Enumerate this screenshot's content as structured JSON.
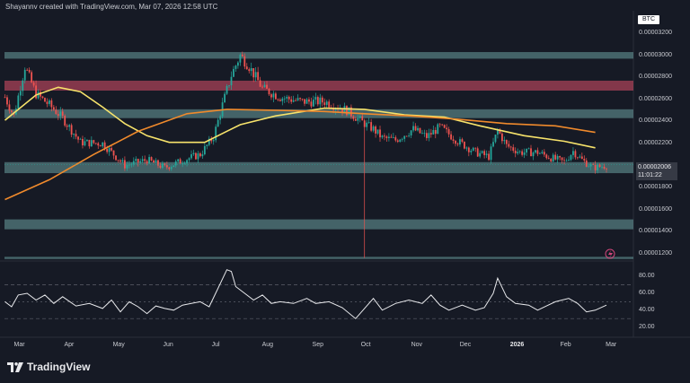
{
  "header": {
    "attribution": "Shayannv created with TradingView.com, Mar 07, 2026 12:58 UTC"
  },
  "footer": {
    "brand": "TradingView"
  },
  "colors": {
    "background": "#161a25",
    "zone": "#5d8a8c",
    "supply_zone": "#b2455a",
    "candle_up": "#26a69a",
    "candle_down": "#ef5350",
    "ma_fast": "#f7e36b",
    "ma_slow": "#f08a2c",
    "rsi_line": "#e8e9ec"
  },
  "chart_data": [
    {
      "type": "candlestick",
      "ticker": "BTC",
      "unit": "BTC",
      "ylim": [
        1.14e-05,
        3.34e-05
      ],
      "price_ticks": [
        "0.00003200",
        "0.00003000",
        "0.00002800",
        "0.00002600",
        "0.00002400",
        "0.00002200",
        "0.00001800",
        "0.00001600",
        "0.00001400",
        "0.00001200"
      ],
      "x_ticks": [
        {
          "label": "Mar",
          "bold": false
        },
        {
          "label": "Apr",
          "bold": false
        },
        {
          "label": "May",
          "bold": false
        },
        {
          "label": "Jun",
          "bold": false
        },
        {
          "label": "Jul",
          "bold": false
        },
        {
          "label": "Aug",
          "bold": false
        },
        {
          "label": "Sep",
          "bold": false
        },
        {
          "label": "Oct",
          "bold": false
        },
        {
          "label": "Nov",
          "bold": false
        },
        {
          "label": "Dec",
          "bold": false
        },
        {
          "label": "2026",
          "bold": true
        },
        {
          "label": "Feb",
          "bold": false
        },
        {
          "label": "Mar",
          "bold": false
        }
      ],
      "last_price": "0.00002006",
      "countdown": "11:01:22",
      "zones": [
        {
          "kind": "support",
          "low": 2.97e-05,
          "high": 3.03e-05
        },
        {
          "kind": "supply",
          "low": 2.68e-05,
          "high": 2.77e-05
        },
        {
          "kind": "support",
          "low": 2.43e-05,
          "high": 2.51e-05
        },
        {
          "kind": "support",
          "low": 1.93e-05,
          "high": 2.03e-05
        },
        {
          "kind": "support",
          "low": 1.42e-05,
          "high": 1.51e-05
        },
        {
          "kind": "support",
          "low": 1.15e-05,
          "high": 1.17e-05
        }
      ],
      "close_path": [
        [
          0,
          2.62e-05
        ],
        [
          4,
          2.45e-05
        ],
        [
          9,
          2.9e-05
        ],
        [
          14,
          2.65e-05
        ],
        [
          20,
          2.55e-05
        ],
        [
          26,
          2.43e-05
        ],
        [
          34,
          2.21e-05
        ],
        [
          44,
          2.2e-05
        ],
        [
          54,
          2e-05
        ],
        [
          64,
          2.05e-05
        ],
        [
          72,
          1.98e-05
        ],
        [
          82,
          2.06e-05
        ],
        [
          88,
          2.1e-05
        ],
        [
          94,
          2.26e-05
        ],
        [
          98,
          2.55e-05
        ],
        [
          102,
          2.82e-05
        ],
        [
          106,
          3e-05
        ],
        [
          110,
          2.9e-05
        ],
        [
          116,
          2.7e-05
        ],
        [
          124,
          2.62e-05
        ],
        [
          134,
          2.58e-05
        ],
        [
          144,
          2.58e-05
        ],
        [
          154,
          2.5e-05
        ],
        [
          162,
          2.38e-05
        ],
        [
          166,
          2.33e-05
        ],
        [
          170,
          2.25e-05
        ],
        [
          176,
          2.23e-05
        ],
        [
          184,
          2.33e-05
        ],
        [
          190,
          2.26e-05
        ],
        [
          196,
          2.35e-05
        ],
        [
          204,
          2.22e-05
        ],
        [
          212,
          2.12e-05
        ],
        [
          218,
          2.08e-05
        ],
        [
          222,
          2.32e-05
        ],
        [
          226,
          2.18e-05
        ],
        [
          232,
          2.12e-05
        ],
        [
          240,
          2.12e-05
        ],
        [
          246,
          2.07e-05
        ],
        [
          252,
          2.03e-05
        ],
        [
          256,
          2.13e-05
        ],
        [
          260,
          2.05e-05
        ],
        [
          265,
          1.98e-05
        ],
        [
          271,
          2e-05
        ]
      ],
      "wick_low": {
        "day": 162,
        "low": 1.16e-05
      },
      "series": [
        {
          "kind": "ma_fast",
          "points": [
            [
              0,
              2.41e-05
            ],
            [
              14,
              2.64e-05
            ],
            [
              24,
              2.71e-05
            ],
            [
              34,
              2.67e-05
            ],
            [
              44,
              2.53e-05
            ],
            [
              54,
              2.38e-05
            ],
            [
              64,
              2.27e-05
            ],
            [
              74,
              2.21e-05
            ],
            [
              90,
              2.21e-05
            ],
            [
              106,
              2.37e-05
            ],
            [
              122,
              2.45e-05
            ],
            [
              144,
              2.52e-05
            ],
            [
              162,
              2.51e-05
            ],
            [
              180,
              2.46e-05
            ],
            [
              198,
              2.44e-05
            ],
            [
              214,
              2.36e-05
            ],
            [
              234,
              2.27e-05
            ],
            [
              252,
              2.22e-05
            ],
            [
              266,
              2.16e-05
            ]
          ]
        },
        {
          "kind": "ma_slow",
          "points": [
            [
              0,
              1.69e-05
            ],
            [
              20,
              1.87e-05
            ],
            [
              40,
              2.1e-05
            ],
            [
              60,
              2.31e-05
            ],
            [
              82,
              2.47e-05
            ],
            [
              100,
              2.51e-05
            ],
            [
              124,
              2.5e-05
            ],
            [
              144,
              2.49e-05
            ],
            [
              162,
              2.47e-05
            ],
            [
              182,
              2.45e-05
            ],
            [
              204,
              2.42e-05
            ],
            [
              226,
              2.38e-05
            ],
            [
              248,
              2.36e-05
            ],
            [
              266,
              2.3e-05
            ]
          ]
        }
      ]
    },
    {
      "type": "line",
      "name": "RSI",
      "ylim": [
        10,
        93
      ],
      "y_ticks": [
        "80.00",
        "60.00",
        "40.00",
        "20.00"
      ],
      "guides": [
        70,
        50,
        30
      ],
      "values": [
        [
          0,
          50
        ],
        [
          3,
          44
        ],
        [
          6,
          58
        ],
        [
          10,
          60
        ],
        [
          14,
          52
        ],
        [
          18,
          58
        ],
        [
          22,
          48
        ],
        [
          26,
          56
        ],
        [
          32,
          45
        ],
        [
          38,
          48
        ],
        [
          44,
          42
        ],
        [
          48,
          52
        ],
        [
          52,
          38
        ],
        [
          56,
          50
        ],
        [
          60,
          44
        ],
        [
          64,
          36
        ],
        [
          68,
          45
        ],
        [
          72,
          42
        ],
        [
          76,
          40
        ],
        [
          80,
          46
        ],
        [
          84,
          48
        ],
        [
          88,
          50
        ],
        [
          92,
          44
        ],
        [
          96,
          66
        ],
        [
          100,
          88
        ],
        [
          102,
          86
        ],
        [
          104,
          68
        ],
        [
          108,
          60
        ],
        [
          112,
          52
        ],
        [
          116,
          58
        ],
        [
          120,
          48
        ],
        [
          124,
          50
        ],
        [
          130,
          48
        ],
        [
          136,
          54
        ],
        [
          140,
          48
        ],
        [
          146,
          50
        ],
        [
          152,
          43
        ],
        [
          158,
          30
        ],
        [
          162,
          42
        ],
        [
          166,
          54
        ],
        [
          170,
          40
        ],
        [
          176,
          48
        ],
        [
          182,
          52
        ],
        [
          188,
          48
        ],
        [
          192,
          58
        ],
        [
          196,
          46
        ],
        [
          200,
          40
        ],
        [
          206,
          46
        ],
        [
          212,
          40
        ],
        [
          216,
          43
        ],
        [
          220,
          60
        ],
        [
          222,
          78
        ],
        [
          226,
          56
        ],
        [
          230,
          48
        ],
        [
          236,
          46
        ],
        [
          240,
          40
        ],
        [
          244,
          45
        ],
        [
          248,
          50
        ],
        [
          254,
          54
        ],
        [
          258,
          48
        ],
        [
          262,
          38
        ],
        [
          266,
          40
        ],
        [
          271,
          46
        ]
      ]
    }
  ]
}
